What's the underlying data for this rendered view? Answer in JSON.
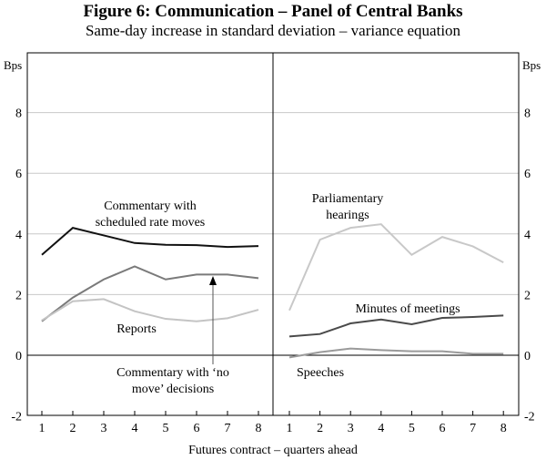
{
  "chart_data": {
    "type": "line",
    "title": "Figure 6: Communication – Panel of Central Banks",
    "subtitle": "Same-day increase in standard deviation – variance equation",
    "xlabel": "Futures contract – quarters ahead",
    "ylabel_left": "Bps",
    "ylabel_right": "Bps",
    "ylim": [
      -2,
      10
    ],
    "yticks": [
      -2,
      0,
      2,
      4,
      6,
      8
    ],
    "x": [
      1,
      2,
      3,
      4,
      5,
      6,
      7,
      8
    ],
    "grid": true,
    "panels": [
      {
        "name": "left",
        "series": [
          {
            "name": "Commentary with scheduled rate moves",
            "label_lines": [
              "Commentary with",
              "scheduled rate moves"
            ],
            "color": "#111111",
            "values": [
              3.31,
              4.2,
              3.95,
              3.7,
              3.64,
              3.63,
              3.57,
              3.6
            ]
          },
          {
            "name": "Commentary with ‘no move’ decisions",
            "label_lines": [
              "Commentary with ‘no",
              "move’ decisions"
            ],
            "color": "#7a7a7a",
            "values": [
              1.12,
              1.9,
              2.5,
              2.93,
              2.5,
              2.66,
              2.66,
              2.54
            ]
          },
          {
            "name": "Reports",
            "label_lines": [
              "Reports"
            ],
            "color": "#c4c4c4",
            "values": [
              1.15,
              1.78,
              1.85,
              1.45,
              1.2,
              1.12,
              1.22,
              1.5
            ]
          }
        ]
      },
      {
        "name": "right",
        "series": [
          {
            "name": "Parliamentary hearings",
            "label_lines": [
              "Parliamentary",
              "hearings"
            ],
            "color": "#c8c8c8",
            "values": [
              1.48,
              3.81,
              4.2,
              4.32,
              3.31,
              3.9,
              3.59,
              3.06
            ]
          },
          {
            "name": "Minutes of meetings",
            "label_lines": [
              "Minutes of meetings"
            ],
            "color": "#4a4a4a",
            "values": [
              0.62,
              0.7,
              1.05,
              1.18,
              1.02,
              1.23,
              1.26,
              1.31
            ]
          },
          {
            "name": "Speeches",
            "label_lines": [
              "Speeches"
            ],
            "color": "#9a9a9a",
            "values": [
              -0.07,
              0.1,
              0.22,
              0.17,
              0.13,
              0.13,
              0.05,
              0.05
            ]
          }
        ]
      }
    ]
  }
}
